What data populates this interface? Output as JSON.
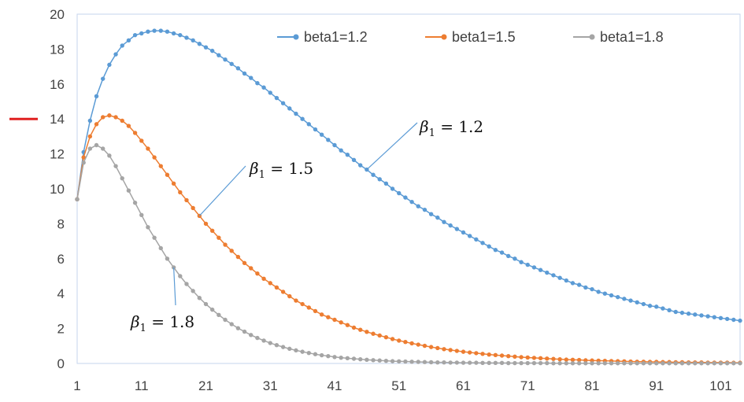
{
  "chart_data": {
    "type": "line",
    "x_start": 1,
    "x_end": 104,
    "xticks": [
      1,
      11,
      21,
      31,
      41,
      51,
      61,
      71,
      81,
      91,
      101
    ],
    "yticks": [
      0,
      2,
      4,
      6,
      8,
      10,
      12,
      14,
      16,
      18,
      20
    ],
    "ylim": [
      0,
      20
    ],
    "grid": false,
    "legend_position": "top-right",
    "series": [
      {
        "name": "beta1=1.2",
        "color": "#5b9bd5",
        "values": [
          9.4,
          12.1,
          13.9,
          15.3,
          16.3,
          17.1,
          17.7,
          18.2,
          18.5,
          18.8,
          18.9,
          19.0,
          19.05,
          19.05,
          19.0,
          18.9,
          18.8,
          18.65,
          18.5,
          18.3,
          18.1,
          17.9,
          17.65,
          17.4,
          17.15,
          16.9,
          16.6,
          16.35,
          16.05,
          15.8,
          15.5,
          15.2,
          14.9,
          14.6,
          14.3,
          14.0,
          13.7,
          13.4,
          13.1,
          12.8,
          12.5,
          12.2,
          11.95,
          11.65,
          11.35,
          11.1,
          10.8,
          10.55,
          10.3,
          10.0,
          9.75,
          9.5,
          9.25,
          9.0,
          8.8,
          8.55,
          8.35,
          8.1,
          7.9,
          7.7,
          7.5,
          7.3,
          7.1,
          6.9,
          6.7,
          6.5,
          6.35,
          6.15,
          6.0,
          5.8,
          5.65,
          5.5,
          5.35,
          5.2,
          5.05,
          4.9,
          4.75,
          4.6,
          4.5,
          4.35,
          4.25,
          4.1,
          4.0,
          3.9,
          3.8,
          3.7,
          3.6,
          3.5,
          3.4,
          3.3,
          3.25,
          3.15,
          3.05,
          2.95,
          2.9,
          2.85,
          2.8,
          2.75,
          2.7,
          2.65,
          2.6,
          2.55,
          2.5,
          2.45
        ]
      },
      {
        "name": "beta1=1.5",
        "color": "#ed7d31",
        "values": [
          9.4,
          11.8,
          13.0,
          13.7,
          14.1,
          14.2,
          14.1,
          13.9,
          13.6,
          13.2,
          12.75,
          12.3,
          11.8,
          11.3,
          10.8,
          10.3,
          9.8,
          9.35,
          8.9,
          8.45,
          8.0,
          7.6,
          7.2,
          6.8,
          6.45,
          6.1,
          5.75,
          5.45,
          5.15,
          4.85,
          4.6,
          4.35,
          4.1,
          3.85,
          3.6,
          3.4,
          3.2,
          3.0,
          2.8,
          2.65,
          2.5,
          2.35,
          2.2,
          2.05,
          1.93,
          1.81,
          1.7,
          1.6,
          1.5,
          1.4,
          1.31,
          1.23,
          1.15,
          1.08,
          1.01,
          0.94,
          0.88,
          0.82,
          0.77,
          0.72,
          0.67,
          0.63,
          0.59,
          0.55,
          0.51,
          0.48,
          0.45,
          0.42,
          0.39,
          0.36,
          0.34,
          0.32,
          0.3,
          0.28,
          0.26,
          0.24,
          0.22,
          0.21,
          0.2,
          0.18,
          0.17,
          0.16,
          0.15,
          0.14,
          0.13,
          0.12,
          0.11,
          0.1,
          0.1,
          0.09,
          0.09,
          0.08,
          0.08,
          0.07,
          0.07,
          0.06,
          0.06,
          0.06,
          0.05,
          0.05,
          0.05,
          0.05,
          0.04,
          0.04
        ]
      },
      {
        "name": "beta1=1.8",
        "color": "#a5a5a5",
        "values": [
          9.4,
          11.5,
          12.3,
          12.5,
          12.3,
          11.9,
          11.3,
          10.6,
          9.9,
          9.2,
          8.5,
          7.8,
          7.2,
          6.6,
          6.0,
          5.5,
          5.0,
          4.55,
          4.15,
          3.75,
          3.4,
          3.08,
          2.78,
          2.5,
          2.25,
          2.02,
          1.82,
          1.63,
          1.46,
          1.31,
          1.17,
          1.05,
          0.94,
          0.84,
          0.75,
          0.67,
          0.6,
          0.53,
          0.47,
          0.42,
          0.37,
          0.33,
          0.3,
          0.27,
          0.24,
          0.21,
          0.19,
          0.17,
          0.15,
          0.13,
          0.12,
          0.11,
          0.1,
          0.09,
          0.08,
          0.07,
          0.06,
          0.06,
          0.05,
          0.05,
          0.04,
          0.04,
          0.04,
          0.03,
          0.03,
          0.03,
          0.03,
          0.02,
          0.02,
          0.02,
          0.02,
          0.02,
          0.02,
          0.02,
          0.01,
          0.01,
          0.01,
          0.01,
          0.01,
          0.01,
          0.01,
          0.01,
          0.01,
          0.01,
          0.01,
          0.01,
          0.01,
          0.01,
          0.01,
          0.01,
          0.01,
          0.01,
          0.01,
          0.01,
          0.01,
          0.01,
          0.01,
          0.01,
          0.01,
          0.01,
          0.01,
          0.01,
          0.01,
          0.01
        ]
      }
    ],
    "annotations": [
      {
        "symbol": "β",
        "subscript": "1",
        "text": " = 1.2",
        "target_series": 0,
        "target_x": 46
      },
      {
        "symbol": "β",
        "subscript": "1",
        "text": " = 1.5",
        "target_series": 1,
        "target_x": 20
      },
      {
        "symbol": "β",
        "subscript": "1",
        "text": " = 1.8",
        "target_series": 2,
        "target_x": 16
      }
    ],
    "marker": {
      "color": "#e02020",
      "y_value": 14
    }
  }
}
